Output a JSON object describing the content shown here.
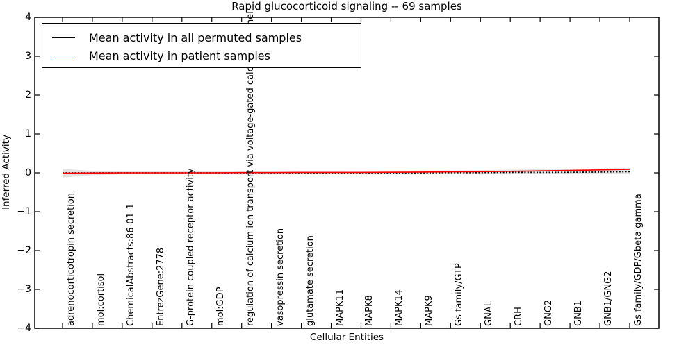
{
  "chart_data": {
    "type": "line",
    "title": "Rapid glucocorticoid signaling -- 69 samples",
    "xlabel": "Cellular Entities",
    "ylabel": "Inferred Activity",
    "ylim": [
      -4,
      4
    ],
    "yticks": {
      "values": [
        4,
        3,
        2,
        1,
        0,
        -1,
        -2,
        -3,
        -4
      ],
      "labels": [
        "4",
        "3",
        "2",
        "1",
        "0",
        "−1",
        "−2",
        "−3",
        "−4"
      ]
    },
    "grid": false,
    "legend_position": "upper left",
    "categories": [
      "adrenocorticotropin secretion",
      "mol:cortisol",
      "ChemicalAbstracts:86-01-1",
      "EntrezGene:2778",
      "G-protein coupled receptor activity",
      "mol:GDP",
      "regulation of calcium ion transport via voltage-gated calcium channel",
      "vasopressin secretion",
      "glutamate secretion",
      "MAPK11",
      "MAPK8",
      "MAPK14",
      "MAPK9",
      "Gs family/GTP",
      "GNAL",
      "CRH",
      "GNG2",
      "GNB1",
      "GNB1/GNG2",
      "Gs family/GDP/Gbeta gamma"
    ],
    "series": [
      {
        "name": "Mean activity in all permuted samples",
        "color": "#000000",
        "linestyle": "dashed",
        "values": [
          0.0,
          0.0,
          0.0,
          0.0,
          0.0,
          0.0,
          0.0,
          0.0,
          0.0,
          0.0,
          0.0,
          0.0,
          0.0,
          0.005,
          0.005,
          0.01,
          0.01,
          0.015,
          0.02,
          0.03
        ]
      },
      {
        "name": "Mean activity in patient samples",
        "color": "#ff0000",
        "linestyle": "solid",
        "values": [
          -0.01,
          -0.005,
          0.0,
          0.0,
          0.0,
          0.0,
          0.005,
          0.005,
          0.01,
          0.01,
          0.01,
          0.015,
          0.02,
          0.025,
          0.03,
          0.04,
          0.05,
          0.06,
          0.075,
          0.09
        ]
      }
    ],
    "band": {
      "color": "#d9d9d9",
      "upper": [
        0.1,
        0.05,
        0.04,
        0.04,
        0.04,
        0.04,
        0.04,
        0.04,
        0.04,
        0.04,
        0.05,
        0.05,
        0.06,
        0.06,
        0.07,
        0.08,
        0.09,
        0.1,
        0.11,
        0.13
      ],
      "lower": [
        -0.12,
        -0.06,
        -0.04,
        -0.04,
        -0.04,
        -0.04,
        -0.04,
        -0.04,
        -0.04,
        -0.04,
        -0.04,
        -0.04,
        -0.04,
        -0.04,
        -0.04,
        -0.03,
        -0.03,
        -0.03,
        -0.02,
        -0.02
      ]
    },
    "colors": {
      "axis": "#000000",
      "background": "#ffffff"
    }
  },
  "legend": {
    "items": [
      {
        "label": "Mean activity in all permuted samples",
        "color": "#000000"
      },
      {
        "label": "Mean activity in patient samples",
        "color": "#ff0000"
      }
    ]
  }
}
